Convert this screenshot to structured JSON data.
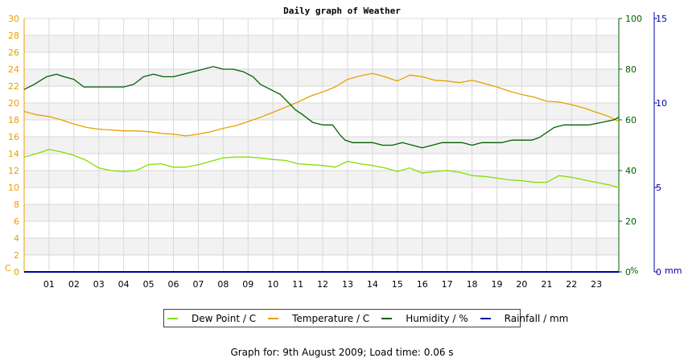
{
  "chart_data": {
    "type": "line",
    "title": "Daily graph of Weather",
    "x_ticks": [
      "01",
      "02",
      "03",
      "04",
      "05",
      "06",
      "07",
      "08",
      "09",
      "10",
      "11",
      "12",
      "13",
      "14",
      "15",
      "16",
      "17",
      "18",
      "19",
      "20",
      "21",
      "22",
      "23"
    ],
    "xlim": [
      0,
      23.9
    ],
    "axes": {
      "left": {
        "unit_label": "C",
        "ylim": [
          0,
          30
        ],
        "ticks": [
          0,
          2,
          4,
          6,
          8,
          10,
          12,
          14,
          16,
          18,
          20,
          22,
          24,
          26,
          28,
          30
        ],
        "color": "#e8a000"
      },
      "right1": {
        "unit_label": "%",
        "ylim": [
          0,
          100
        ],
        "ticks": [
          0,
          20,
          40,
          60,
          80,
          100
        ],
        "color": "#006000"
      },
      "right2": {
        "unit_label": "mm",
        "ylim": [
          0,
          15
        ],
        "ticks": [
          0,
          5,
          10,
          15
        ],
        "color": "#0000a0"
      }
    },
    "grid": true,
    "legend_position": "bottom",
    "series": [
      {
        "name": "Dew Point / C",
        "axis": "left",
        "color": "#80e000",
        "x": [
          0,
          0.5,
          1,
          1.5,
          2,
          2.5,
          3,
          3.5,
          4,
          4.5,
          5,
          5.5,
          6,
          6.5,
          7,
          7.5,
          8,
          8.5,
          9,
          9.5,
          10,
          10.5,
          11,
          11.5,
          12,
          12.5,
          13,
          13.5,
          14,
          14.5,
          15,
          15.5,
          16,
          16.5,
          17,
          17.5,
          18,
          18.5,
          19,
          19.5,
          20,
          20.5,
          21,
          21.5,
          22,
          22.5,
          23,
          23.5,
          23.9
        ],
        "y": [
          13.6,
          14.0,
          14.5,
          14.2,
          13.8,
          13.2,
          12.3,
          12.0,
          11.9,
          12.0,
          12.7,
          12.8,
          12.4,
          12.4,
          12.7,
          13.1,
          13.5,
          13.6,
          13.6,
          13.5,
          13.3,
          13.2,
          12.8,
          12.7,
          12.6,
          12.4,
          13.1,
          12.8,
          12.6,
          12.3,
          11.9,
          12.3,
          11.7,
          11.9,
          12.0,
          11.8,
          11.4,
          11.3,
          11.1,
          10.9,
          10.8,
          10.6,
          10.6,
          11.4,
          11.2,
          10.9,
          10.6,
          10.3,
          10.0
        ]
      },
      {
        "name": "Temperature / C",
        "axis": "left",
        "color": "#e8a000",
        "x": [
          0,
          0.5,
          1,
          1.5,
          2,
          2.5,
          3,
          3.5,
          4,
          4.5,
          5,
          5.5,
          6,
          6.5,
          7,
          7.5,
          8,
          8.5,
          9,
          9.5,
          10,
          10.5,
          11,
          11.5,
          12,
          12.5,
          13,
          13.5,
          14,
          14.5,
          15,
          15.5,
          16,
          16.5,
          17,
          17.5,
          18,
          18.5,
          19,
          19.5,
          20,
          20.5,
          21,
          21.5,
          22,
          22.5,
          23,
          23.5,
          23.9
        ],
        "y": [
          19.0,
          18.6,
          18.4,
          18.0,
          17.5,
          17.1,
          16.9,
          16.8,
          16.7,
          16.7,
          16.6,
          16.4,
          16.3,
          16.1,
          16.3,
          16.6,
          17.0,
          17.3,
          17.8,
          18.3,
          18.9,
          19.5,
          20.1,
          20.8,
          21.3,
          21.9,
          22.8,
          23.2,
          23.5,
          23.1,
          22.6,
          23.3,
          23.1,
          22.7,
          22.6,
          22.4,
          22.7,
          22.3,
          21.9,
          21.4,
          21.0,
          20.7,
          20.2,
          20.1,
          19.8,
          19.4,
          18.9,
          18.4,
          17.8
        ]
      },
      {
        "name": "Humidity / %",
        "axis": "right1",
        "color": "#006000",
        "x": [
          0,
          0.4,
          0.9,
          1.3,
          1.6,
          2.0,
          2.4,
          3.0,
          3.6,
          4.0,
          4.4,
          4.8,
          5.2,
          5.6,
          6.0,
          6.4,
          6.8,
          7.2,
          7.6,
          8.0,
          8.4,
          8.8,
          9.2,
          9.5,
          9.9,
          10.3,
          10.6,
          10.9,
          11.2,
          11.6,
          12.0,
          12.4,
          12.7,
          12.9,
          13.2,
          13.6,
          14.0,
          14.4,
          14.8,
          15.2,
          15.6,
          16.0,
          16.4,
          16.8,
          17.2,
          17.6,
          18.0,
          18.4,
          18.8,
          19.2,
          19.6,
          20.0,
          20.4,
          20.7,
          21.0,
          21.3,
          21.7,
          22.2,
          22.7,
          23.2,
          23.7,
          23.9
        ],
        "y": [
          72,
          74,
          77,
          78,
          77,
          76,
          73,
          73,
          73,
          73,
          74,
          77,
          78,
          77,
          77,
          78,
          79,
          80,
          81,
          80,
          80,
          79,
          77,
          74,
          72,
          70,
          67,
          64,
          62,
          59,
          58,
          58,
          54,
          52,
          51,
          51,
          51,
          50,
          50,
          51,
          50,
          49,
          50,
          51,
          51,
          51,
          50,
          51,
          51,
          51,
          52,
          52,
          52,
          53,
          55,
          57,
          58,
          58,
          58,
          59,
          60,
          61
        ]
      }
    ]
  },
  "legend": [
    {
      "label": "Dew Point / C",
      "color": "#80e000"
    },
    {
      "label": "Temperature / C",
      "color": "#e8a000"
    },
    {
      "label": "Humidity / %",
      "color": "#006000"
    },
    {
      "label": "Rainfall / mm",
      "color": "#0000a0"
    }
  ],
  "footer": "Graph for: 9th August 2009; Load time: 0.06 s"
}
